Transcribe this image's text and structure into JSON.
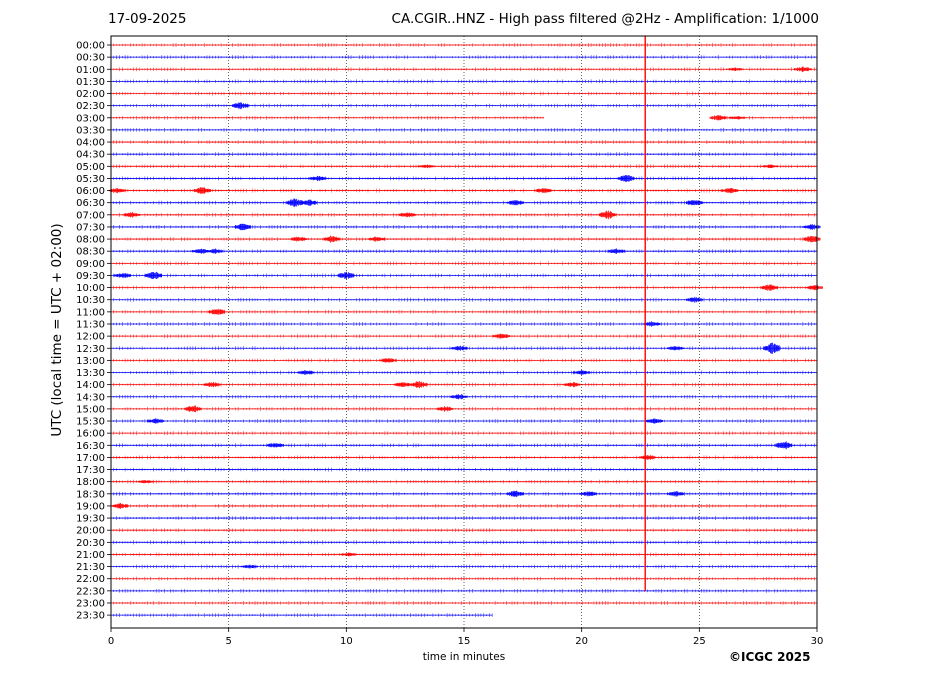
{
  "header": {
    "date": "17-09-2025",
    "title": "CA.CGIR..HNZ - High pass filtered @2Hz - Amplification: 1/1000"
  },
  "footer": {
    "copyright": "©ICGC 2025"
  },
  "chart_data": {
    "type": "line",
    "title": "CA.CGIR..HNZ - High pass filtered @2Hz - Amplification: 1/1000",
    "xlabel": "time in minutes",
    "ylabel": "UTC (local time = UTC + 02:00)",
    "xlim": [
      0,
      30
    ],
    "x_ticks": [
      0,
      5,
      10,
      15,
      20,
      25,
      30
    ],
    "x_tick_labels": [
      "0",
      "5",
      "10",
      "15",
      "20",
      "25",
      "30"
    ],
    "vertical_gridlines": [
      5,
      10,
      15,
      20,
      25
    ],
    "grid": "dotted vertical",
    "colors": {
      "red_trace": "#ff0000",
      "blue_trace": "#0000ff",
      "axes": "#000000"
    },
    "row_labels": [
      "00:00",
      "00:30",
      "01:00",
      "01:30",
      "02:00",
      "02:30",
      "03:00",
      "03:30",
      "04:00",
      "04:30",
      "05:00",
      "05:30",
      "06:00",
      "06:30",
      "07:00",
      "07:30",
      "08:00",
      "08:30",
      "09:00",
      "09:30",
      "10:00",
      "10:30",
      "11:00",
      "11:30",
      "12:00",
      "12:30",
      "13:00",
      "13:30",
      "14:00",
      "14:30",
      "15:00",
      "15:30",
      "16:00",
      "16:30",
      "17:00",
      "17:30",
      "18:00",
      "18:30",
      "19:00",
      "19:30",
      "20:00",
      "20:30",
      "21:00",
      "21:30",
      "22:00",
      "22:30",
      "23:00",
      "23:30"
    ],
    "series": [
      {
        "color": "red",
        "rows": [
          "00:00",
          "01:00",
          "02:00",
          "03:00",
          "04:00",
          "05:00",
          "06:00",
          "07:00",
          "08:00",
          "09:00",
          "10:00",
          "11:00",
          "12:00",
          "13:00",
          "14:00",
          "15:00",
          "16:00",
          "17:00",
          "18:00",
          "19:00",
          "20:00",
          "21:00",
          "22:00",
          "23:00"
        ]
      },
      {
        "color": "blue",
        "rows": [
          "00:30",
          "01:30",
          "02:30",
          "03:30",
          "04:30",
          "05:30",
          "06:30",
          "07:30",
          "08:30",
          "09:30",
          "10:30",
          "11:30",
          "12:30",
          "13:30",
          "14:30",
          "15:30",
          "16:30",
          "17:30",
          "18:30",
          "19:30",
          "20:30",
          "21:30",
          "22:30",
          "23:30"
        ]
      }
    ],
    "last_row_end_minute": 16.2,
    "row_03_00_gap_minutes": [
      18.4,
      25.7
    ],
    "vertical_glitch": {
      "minute": 22.7,
      "from_row": "00:00",
      "to_row": "22:30"
    },
    "events": [
      {
        "row": "01:00",
        "minute": 26.5,
        "amp": 2
      },
      {
        "row": "01:00",
        "minute": 29.4,
        "amp": 3
      },
      {
        "row": "02:30",
        "minute": 5.5,
        "amp": 4
      },
      {
        "row": "03:00",
        "minute": 25.8,
        "amp": 3
      },
      {
        "row": "03:00",
        "minute": 26.6,
        "amp": 2
      },
      {
        "row": "05:00",
        "minute": 13.4,
        "amp": 2
      },
      {
        "row": "05:00",
        "minute": 28.0,
        "amp": 2
      },
      {
        "row": "05:30",
        "minute": 8.8,
        "amp": 3
      },
      {
        "row": "05:30",
        "minute": 21.9,
        "amp": 4
      },
      {
        "row": "06:00",
        "minute": 0.3,
        "amp": 3
      },
      {
        "row": "06:00",
        "minute": 3.9,
        "amp": 4
      },
      {
        "row": "06:00",
        "minute": 18.4,
        "amp": 3
      },
      {
        "row": "06:00",
        "minute": 26.3,
        "amp": 3
      },
      {
        "row": "06:30",
        "minute": 7.8,
        "amp": 5
      },
      {
        "row": "06:30",
        "minute": 8.4,
        "amp": 4
      },
      {
        "row": "06:30",
        "minute": 17.2,
        "amp": 3
      },
      {
        "row": "06:30",
        "minute": 24.8,
        "amp": 4
      },
      {
        "row": "07:00",
        "minute": 0.9,
        "amp": 3
      },
      {
        "row": "07:00",
        "minute": 12.6,
        "amp": 3
      },
      {
        "row": "07:00",
        "minute": 21.1,
        "amp": 5
      },
      {
        "row": "07:30",
        "minute": 5.6,
        "amp": 4
      },
      {
        "row": "07:30",
        "minute": 29.8,
        "amp": 3
      },
      {
        "row": "08:00",
        "minute": 8.0,
        "amp": 3
      },
      {
        "row": "08:00",
        "minute": 9.4,
        "amp": 4
      },
      {
        "row": "08:00",
        "minute": 11.3,
        "amp": 3
      },
      {
        "row": "08:00",
        "minute": 29.8,
        "amp": 4
      },
      {
        "row": "08:30",
        "minute": 3.8,
        "amp": 3
      },
      {
        "row": "08:30",
        "minute": 4.4,
        "amp": 3
      },
      {
        "row": "08:30",
        "minute": 21.5,
        "amp": 3
      },
      {
        "row": "09:30",
        "minute": 0.5,
        "amp": 3
      },
      {
        "row": "09:30",
        "minute": 1.8,
        "amp": 5
      },
      {
        "row": "09:30",
        "minute": 10.0,
        "amp": 4
      },
      {
        "row": "10:00",
        "minute": 28.0,
        "amp": 4
      },
      {
        "row": "10:00",
        "minute": 29.9,
        "amp": 3
      },
      {
        "row": "10:30",
        "minute": 24.8,
        "amp": 3
      },
      {
        "row": "11:00",
        "minute": 4.5,
        "amp": 4
      },
      {
        "row": "11:30",
        "minute": 23.0,
        "amp": 3
      },
      {
        "row": "12:00",
        "minute": 16.6,
        "amp": 3
      },
      {
        "row": "12:30",
        "minute": 14.8,
        "amp": 3
      },
      {
        "row": "12:30",
        "minute": 24.0,
        "amp": 3
      },
      {
        "row": "12:30",
        "minute": 28.1,
        "amp": 6
      },
      {
        "row": "13:00",
        "minute": 11.8,
        "amp": 3
      },
      {
        "row": "13:30",
        "minute": 8.3,
        "amp": 3
      },
      {
        "row": "13:30",
        "minute": 20.0,
        "amp": 3
      },
      {
        "row": "14:00",
        "minute": 4.3,
        "amp": 3
      },
      {
        "row": "14:00",
        "minute": 12.4,
        "amp": 3
      },
      {
        "row": "14:00",
        "minute": 13.1,
        "amp": 4
      },
      {
        "row": "14:00",
        "minute": 19.6,
        "amp": 3
      },
      {
        "row": "14:30",
        "minute": 14.8,
        "amp": 3
      },
      {
        "row": "15:00",
        "minute": 3.5,
        "amp": 4
      },
      {
        "row": "15:00",
        "minute": 14.2,
        "amp": 3
      },
      {
        "row": "15:30",
        "minute": 1.9,
        "amp": 3
      },
      {
        "row": "15:30",
        "minute": 23.1,
        "amp": 3
      },
      {
        "row": "16:30",
        "minute": 7.0,
        "amp": 3
      },
      {
        "row": "16:30",
        "minute": 28.6,
        "amp": 5
      },
      {
        "row": "17:00",
        "minute": 22.8,
        "amp": 3
      },
      {
        "row": "18:00",
        "minute": 1.5,
        "amp": 2
      },
      {
        "row": "18:30",
        "minute": 17.2,
        "amp": 4
      },
      {
        "row": "18:30",
        "minute": 20.3,
        "amp": 3
      },
      {
        "row": "18:30",
        "minute": 24.0,
        "amp": 3
      },
      {
        "row": "19:00",
        "minute": 0.4,
        "amp": 3
      },
      {
        "row": "21:00",
        "minute": 10.1,
        "amp": 2
      },
      {
        "row": "21:30",
        "minute": 5.9,
        "amp": 2
      }
    ]
  }
}
